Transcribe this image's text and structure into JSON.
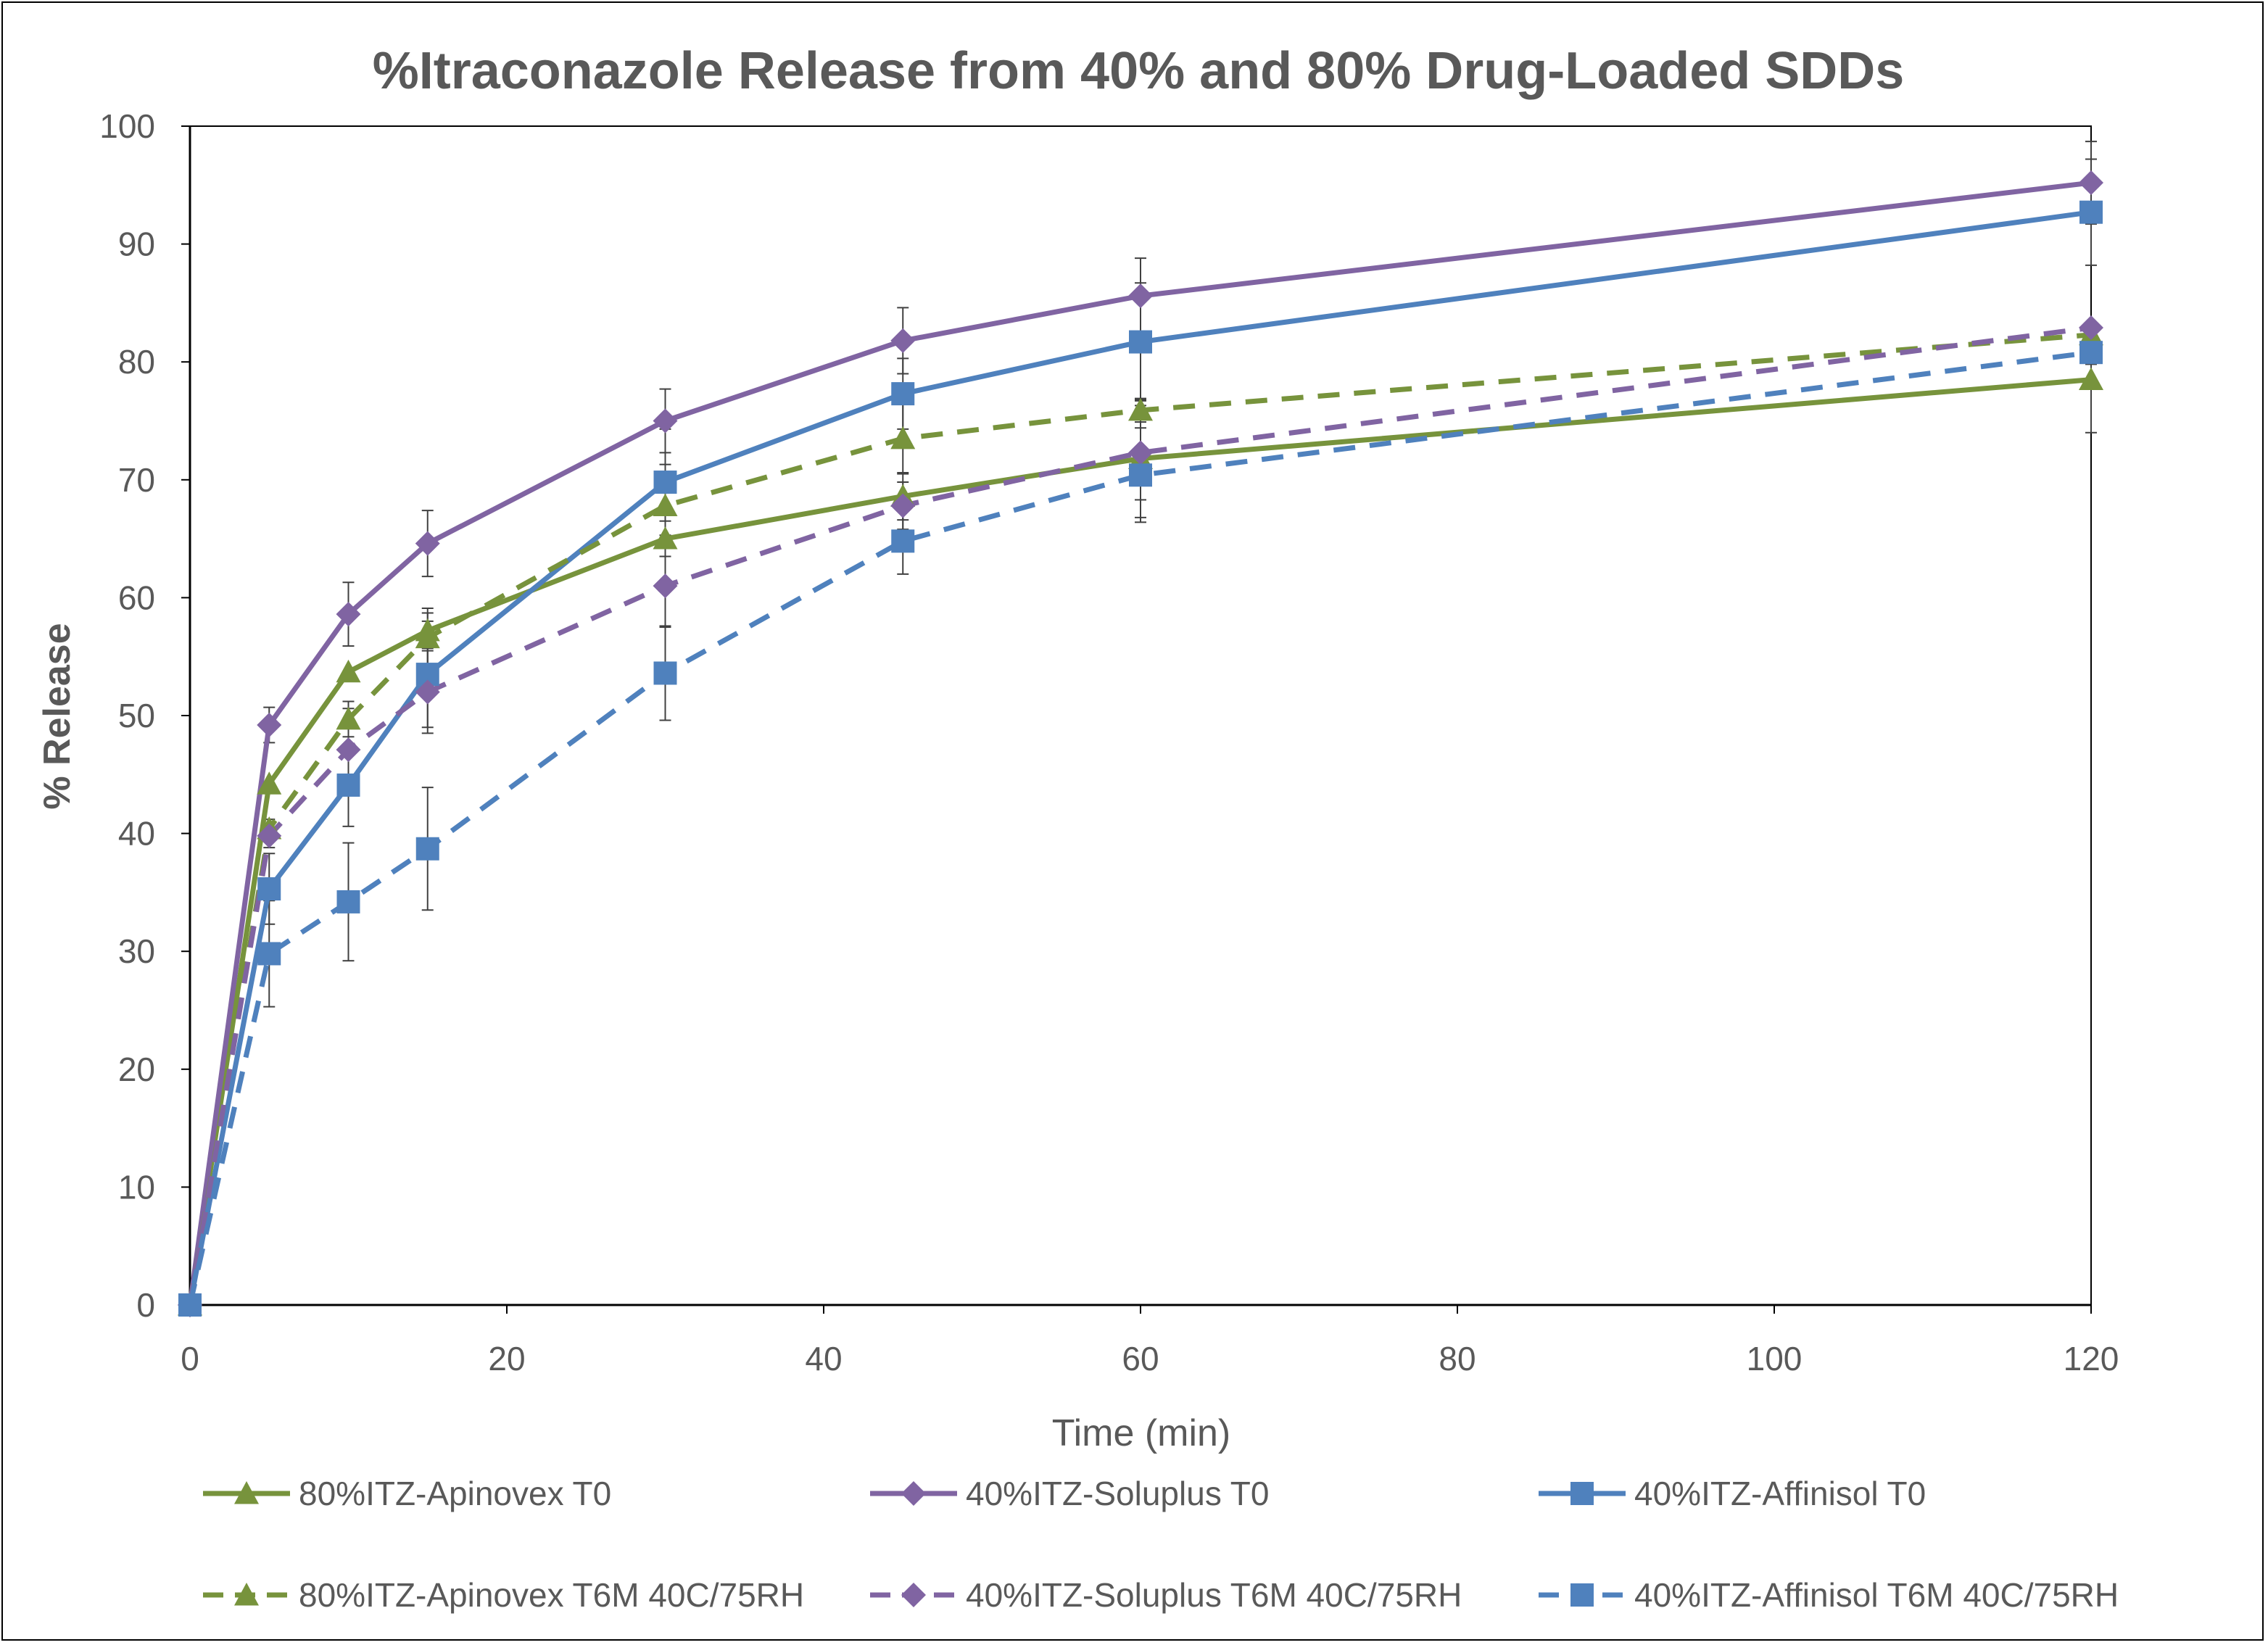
{
  "chart_data": {
    "type": "line",
    "title": "%Itraconazole Release from 40% and 80% Drug-Loaded SDDs",
    "xlabel": "Time (min)",
    "ylabel": "% Release",
    "xlim": [
      0,
      120
    ],
    "ylim": [
      0,
      100
    ],
    "x_ticks": [
      "0",
      "20",
      "40",
      "60",
      "80",
      "100",
      "120"
    ],
    "y_ticks": [
      "0",
      "10",
      "20",
      "30",
      "40",
      "50",
      "60",
      "70",
      "80",
      "90",
      "100"
    ],
    "grid": false,
    "legend_position": "bottom",
    "x": [
      0,
      5,
      10,
      15,
      30,
      45,
      60,
      120
    ],
    "series": [
      {
        "name": "80%ITZ-Apinovex T0",
        "color": "#77933C",
        "marker": "triangle",
        "dash": "solid",
        "values": [
          0,
          44.2,
          53.7,
          57.2,
          65.0,
          68.6,
          71.8,
          78.5
        ],
        "errors": [
          0,
          0,
          0,
          1.5,
          1.5,
          2,
          5,
          4.5
        ]
      },
      {
        "name": "40%ITZ-Soluplus T0",
        "color": "#8064A2",
        "marker": "diamond",
        "dash": "solid",
        "values": [
          0,
          49.2,
          58.6,
          64.6,
          75.0,
          81.8,
          85.6,
          95.2
        ],
        "errors": [
          0,
          1.5,
          2.7,
          2.8,
          2.7,
          2.8,
          3.2,
          3.5
        ]
      },
      {
        "name": "40%ITZ-Affinisol T0",
        "color": "#4F81BD",
        "marker": "square",
        "dash": "solid",
        "values": [
          0,
          35.3,
          44.1,
          53.5,
          69.8,
          77.3,
          81.7,
          92.7
        ],
        "errors": [
          0,
          3,
          3.5,
          4.5,
          4.5,
          3,
          5,
          4.5
        ]
      },
      {
        "name": "80%ITZ-Apinovex T6M 40C/75RH",
        "color": "#77933C",
        "marker": "triangle",
        "dash": "dashed",
        "values": [
          0,
          40.4,
          49.7,
          56.6,
          67.8,
          73.5,
          75.9,
          82.3
        ],
        "errors": [
          0,
          0.8,
          1.5,
          2.5,
          3.5,
          3,
          1,
          0
        ]
      },
      {
        "name": "40%ITZ-Soluplus T6M 40C/75RH",
        "color": "#8064A2",
        "marker": "diamond",
        "dash": "dashed",
        "values": [
          0,
          39.8,
          47.1,
          52.0,
          61.0,
          67.8,
          72.3,
          82.9
        ],
        "errors": [
          0,
          1,
          3.5,
          3.5,
          3.5,
          2,
          4,
          0
        ]
      },
      {
        "name": "40%ITZ-Affinisol T6M 40C/75RH",
        "color": "#4F81BD",
        "marker": "square",
        "dash": "dashed",
        "values": [
          0,
          29.8,
          34.2,
          38.7,
          53.6,
          64.8,
          70.4,
          80.8
        ],
        "errors": [
          0,
          4.5,
          5,
          5.2,
          4,
          2.8,
          4,
          1
        ]
      }
    ]
  }
}
